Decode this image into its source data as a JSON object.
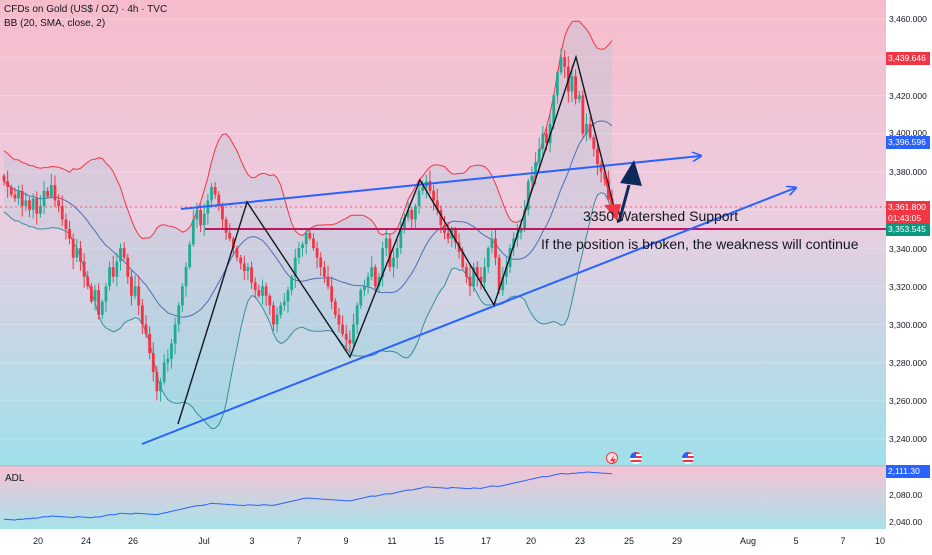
{
  "header": {
    "title": "CFDs on Gold (US$ / OZ) · 4h · TVC",
    "indicator": "BB (20, SMA, close, 2)"
  },
  "adl_panel": {
    "label": "ADL"
  },
  "price_axis": {
    "ticks": [
      "3,460.000",
      "3,420.000",
      "3,400.000",
      "3,380.000",
      "3,340.000",
      "3,320.000",
      "3,300.000",
      "3,280.000",
      "3,260.000",
      "3,240.000"
    ],
    "adl_ticks": [
      "2,080.00",
      "2,040.00"
    ]
  },
  "price_labels": {
    "upper_band": "3,439.646",
    "basis": "3,396.596",
    "last_price": "3,361.800",
    "countdown": "01:43:05",
    "lower_line": "3,353.545",
    "adl_value": "2,111.30"
  },
  "time_axis": {
    "ticks": [
      "20",
      "24",
      "26",
      "Jul",
      "3",
      "7",
      "9",
      "11",
      "15",
      "17",
      "20",
      "23",
      "25",
      "29",
      "Aug",
      "5",
      "7",
      "10"
    ]
  },
  "annotations": {
    "support": "3350 Watershed Support",
    "weakness": "If the position is broken, the weakness will continue"
  },
  "icons": [
    "lightning-icon",
    "us-flag-icon",
    "us-flag-icon"
  ],
  "colors": {
    "bull": "#22ab94",
    "bear": "#f23645",
    "trend": "#2962ff",
    "band": "#f23645",
    "basis": "#2962ff",
    "lower_band": "#089981",
    "support_line": "#c2185b",
    "arrow_up": "#0d2a5a",
    "arrow_down": "#f23645"
  },
  "chart_data": {
    "type": "candlestick",
    "title": "CFDs on Gold (US$ / OZ) · 4h · TVC",
    "y_range": [
      3230,
      3470
    ],
    "key_levels": {
      "watershed_support": 3350,
      "upper_band": 3439.646,
      "basis": 3396.596,
      "last": 3361.8,
      "level_label": 3353.545
    },
    "closes": [
      3375,
      3372,
      3368,
      3366,
      3370,
      3362,
      3365,
      3360,
      3366,
      3358,
      3362,
      3370,
      3367,
      3373,
      3365,
      3362,
      3355,
      3350,
      3345,
      3335,
      3340,
      3333,
      3325,
      3320,
      3312,
      3318,
      3305,
      3312,
      3320,
      3330,
      3325,
      3333,
      3340,
      3335,
      3325,
      3315,
      3320,
      3310,
      3300,
      3295,
      3285,
      3275,
      3265,
      3270,
      3280,
      3282,
      3290,
      3300,
      3310,
      3320,
      3330,
      3342,
      3355,
      3360,
      3352,
      3358,
      3365,
      3372,
      3368,
      3362,
      3355,
      3348,
      3345,
      3340,
      3335,
      3332,
      3328,
      3330,
      3322,
      3318,
      3315,
      3320,
      3315,
      3310,
      3300,
      3305,
      3310,
      3312,
      3318,
      3325,
      3335,
      3340,
      3342,
      3348,
      3345,
      3340,
      3335,
      3330,
      3325,
      3320,
      3312,
      3305,
      3300,
      3295,
      3292,
      3290,
      3300,
      3310,
      3318,
      3320,
      3325,
      3330,
      3320,
      3325,
      3340,
      3345,
      3330,
      3335,
      3340,
      3350,
      3356,
      3360,
      3355,
      3362,
      3370,
      3372,
      3375,
      3370,
      3365,
      3360,
      3352,
      3348,
      3345,
      3350,
      3343,
      3338,
      3330,
      3325,
      3320,
      3330,
      3325,
      3322,
      3330,
      3340,
      3345,
      3335,
      3318,
      3325,
      3330,
      3340,
      3345,
      3348,
      3350,
      3360,
      3375,
      3378,
      3385,
      3392,
      3400,
      3395,
      3405,
      3420,
      3432,
      3440,
      3435,
      3422,
      3430,
      3418,
      3420,
      3400,
      3405,
      3398,
      3392,
      3384,
      3380,
      3376,
      3366,
      3362
    ],
    "annotations": [
      "3350 Watershed Support",
      "If the position is broken, the weakness will continue"
    ]
  }
}
